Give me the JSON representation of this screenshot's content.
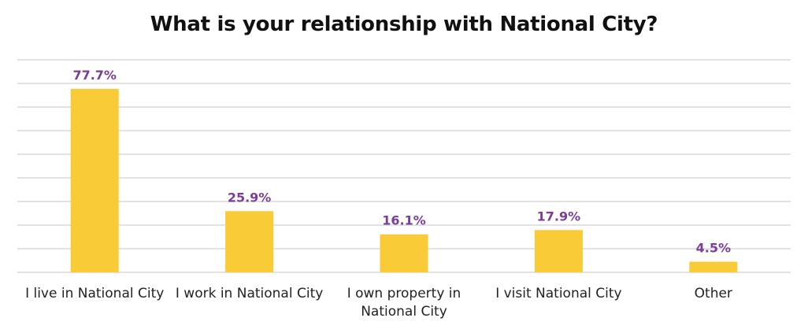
{
  "chart_data": {
    "type": "bar",
    "title": "What is your relationship with National City?",
    "categories": [
      [
        "I live in National City"
      ],
      [
        "I work in National City"
      ],
      [
        "I own property in",
        "National City"
      ],
      [
        "I visit National City"
      ],
      [
        "Other"
      ]
    ],
    "values": [
      77.7,
      25.9,
      16.1,
      17.9,
      4.5
    ],
    "data_labels": [
      "77.7%",
      "25.9%",
      "16.1%",
      "17.9%",
      "4.5%"
    ],
    "ylim": [
      0,
      90
    ],
    "grid": true,
    "y_axis_tick_labels_shown": false,
    "legend": "none"
  },
  "colors": {
    "bar": "#f9cb36",
    "data_label": "#7a3e96",
    "gridline": "#d9d9d9",
    "title": "#111111"
  }
}
